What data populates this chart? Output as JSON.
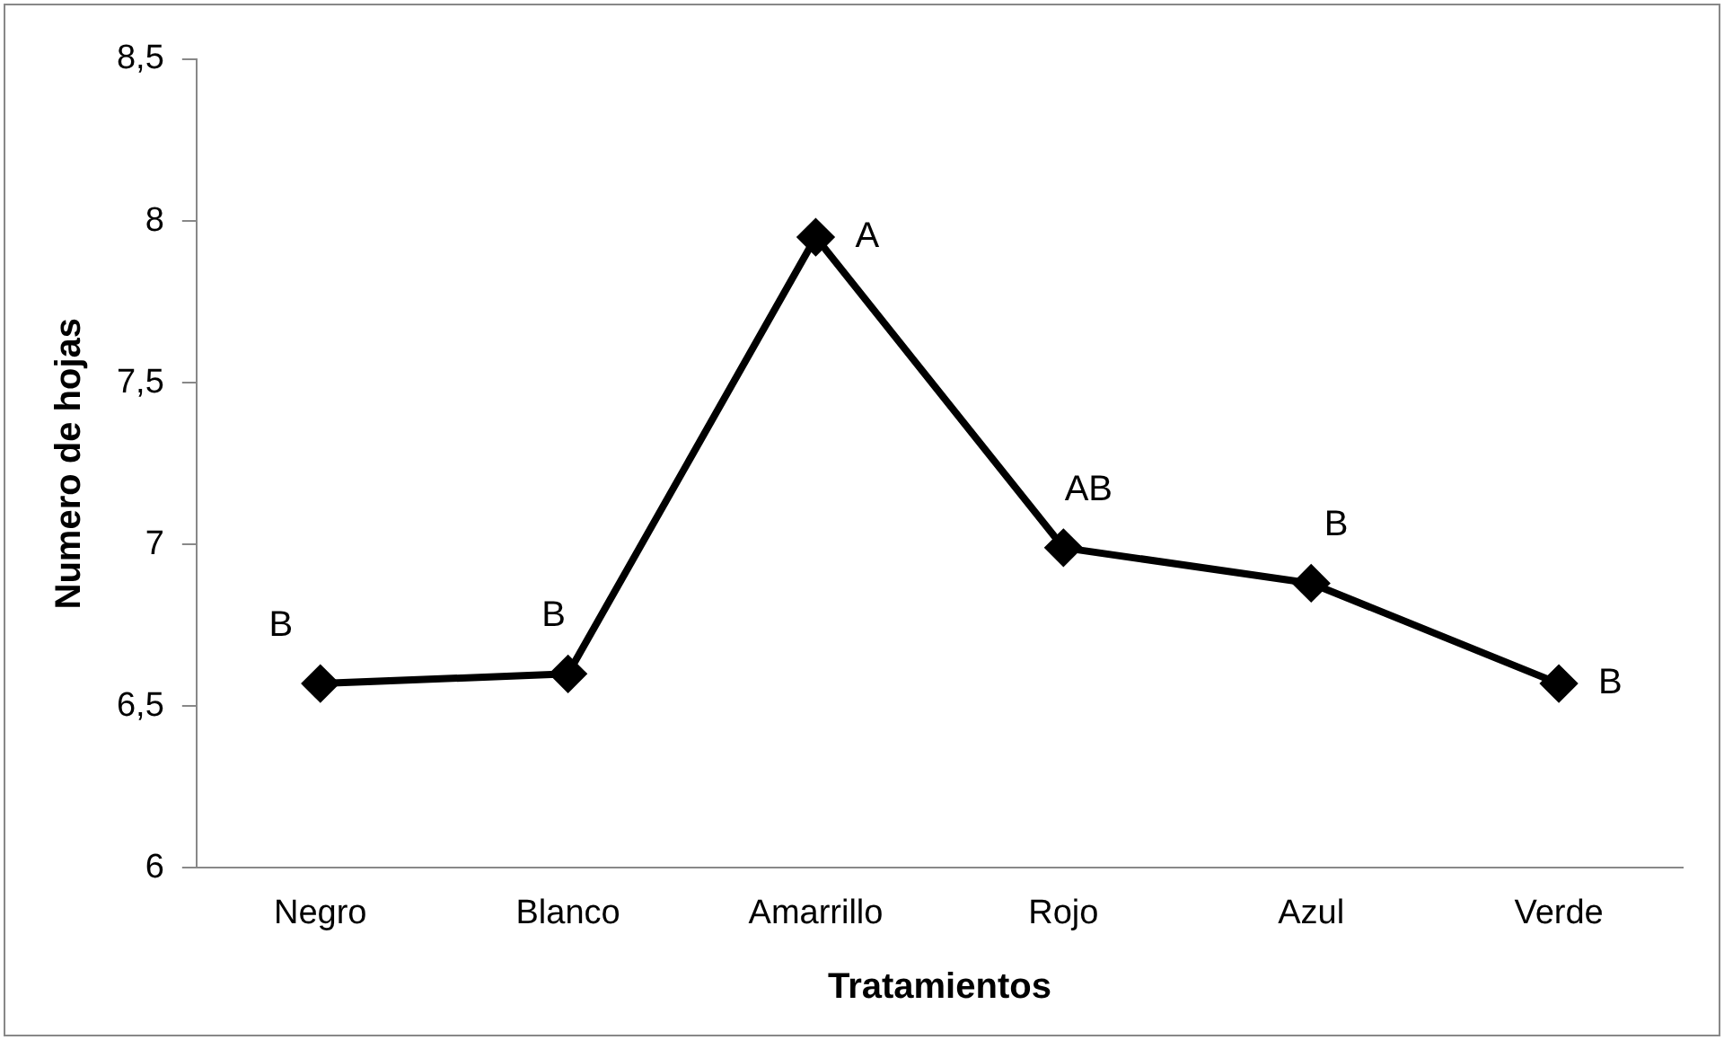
{
  "chart_data": {
    "type": "line",
    "xlabel": "Tratamientos",
    "ylabel": "Numero de hojas",
    "categories": [
      "Negro",
      "Blanco",
      "Amarrillo",
      "Rojo",
      "Azul",
      "Verde"
    ],
    "series": [
      {
        "color": "#000000",
        "values": [
          6.57,
          6.6,
          7.95,
          6.99,
          6.88,
          6.57
        ]
      }
    ],
    "ylim": [
      6,
      8.5
    ],
    "yticks": [
      {
        "value": 6,
        "label": "6"
      },
      {
        "value": 6.5,
        "label": "6,5"
      },
      {
        "value": 7,
        "label": "7"
      },
      {
        "value": 7.5,
        "label": "7,5"
      },
      {
        "value": 8,
        "label": "8"
      },
      {
        "value": 8.5,
        "label": "8,5"
      }
    ],
    "grid": false,
    "legend": false,
    "marker": "diamond",
    "line_style": "solid",
    "annotations": [
      {
        "text": "B",
        "x": "Negro",
        "y": 6.57
      },
      {
        "text": "B",
        "x": "Blanco",
        "y": 6.6
      },
      {
        "text": "A",
        "x": "Amarrillo",
        "y": 7.95
      },
      {
        "text": "AB",
        "x": "Rojo",
        "y": 6.99
      },
      {
        "text": "B",
        "x": "Azul",
        "y": 6.88
      },
      {
        "text": "B",
        "x": "Verde",
        "y": 6.57
      }
    ]
  }
}
